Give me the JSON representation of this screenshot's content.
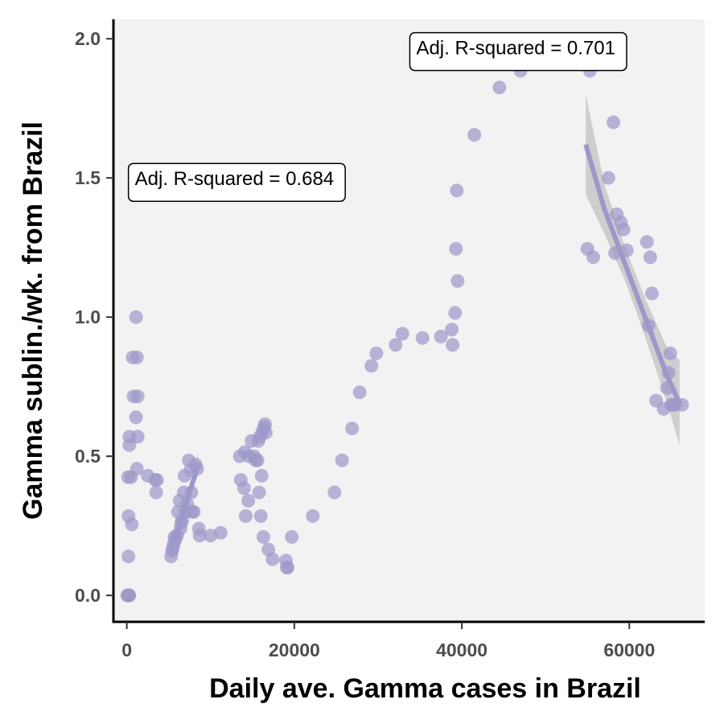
{
  "chart_data": {
    "type": "scatter",
    "title": "",
    "xlabel": "Daily ave. Gamma cases in Brazil",
    "ylabel": "Gamma sublin./wk. from Brazil",
    "xlim": [
      -1600,
      69000
    ],
    "ylim": [
      -0.095,
      2.07
    ],
    "x_ticks": [
      0,
      20000,
      40000,
      60000
    ],
    "x_tick_labels": [
      "0",
      "20000",
      "40000",
      "60000"
    ],
    "y_ticks": [
      0.0,
      0.5,
      1.0,
      1.5,
      2.0
    ],
    "y_tick_labels": [
      "0.0",
      "0.5",
      "1.0",
      "1.5",
      "2.0"
    ],
    "grid": false,
    "colors": {
      "points": "#9c98c9",
      "fit": "#9c98c9",
      "band": "#aaaaaa",
      "panel": "#f2f2f2"
    },
    "points": [
      [
        50,
        0.0
      ],
      [
        150,
        0.0
      ],
      [
        250,
        0.0
      ],
      [
        300,
        0.0
      ],
      [
        200,
        0.14
      ],
      [
        200,
        0.285
      ],
      [
        600,
        0.255
      ],
      [
        150,
        0.425
      ],
      [
        500,
        0.425
      ],
      [
        300,
        0.54
      ],
      [
        300,
        0.57
      ],
      [
        700,
        0.855
      ],
      [
        1200,
        0.855
      ],
      [
        800,
        0.715
      ],
      [
        1300,
        0.715
      ],
      [
        1100,
        0.64
      ],
      [
        1300,
        0.57
      ],
      [
        1200,
        0.455
      ],
      [
        1100,
        1.0
      ],
      [
        2500,
        0.43
      ],
      [
        3400,
        0.415
      ],
      [
        3600,
        0.415
      ],
      [
        3500,
        0.37
      ],
      [
        5300,
        0.14
      ],
      [
        5400,
        0.16
      ],
      [
        5500,
        0.17
      ],
      [
        5600,
        0.185
      ],
      [
        5700,
        0.21
      ],
      [
        5800,
        0.2
      ],
      [
        6000,
        0.215
      ],
      [
        6100,
        0.3
      ],
      [
        6300,
        0.34
      ],
      [
        6400,
        0.24
      ],
      [
        6500,
        0.26
      ],
      [
        6600,
        0.27
      ],
      [
        6800,
        0.37
      ],
      [
        6900,
        0.43
      ],
      [
        7000,
        0.3
      ],
      [
        7200,
        0.33
      ],
      [
        7400,
        0.485
      ],
      [
        7600,
        0.45
      ],
      [
        7700,
        0.37
      ],
      [
        7800,
        0.3
      ],
      [
        8000,
        0.3
      ],
      [
        8200,
        0.47
      ],
      [
        8400,
        0.455
      ],
      [
        8600,
        0.24
      ],
      [
        8700,
        0.215
      ],
      [
        10000,
        0.215
      ],
      [
        11200,
        0.225
      ],
      [
        13500,
        0.5
      ],
      [
        13600,
        0.415
      ],
      [
        14000,
        0.385
      ],
      [
        14200,
        0.285
      ],
      [
        14100,
        0.515
      ],
      [
        14500,
        0.34
      ],
      [
        14600,
        0.5
      ],
      [
        14900,
        0.555
      ],
      [
        15200,
        0.5
      ],
      [
        15400,
        0.485
      ],
      [
        15600,
        0.485
      ],
      [
        15700,
        0.555
      ],
      [
        15800,
        0.37
      ],
      [
        15900,
        0.57
      ],
      [
        16000,
        0.285
      ],
      [
        16100,
        0.43
      ],
      [
        16200,
        0.59
      ],
      [
        16300,
        0.21
      ],
      [
        16400,
        0.605
      ],
      [
        16500,
        0.615
      ],
      [
        16600,
        0.585
      ],
      [
        16900,
        0.165
      ],
      [
        17400,
        0.13
      ],
      [
        19000,
        0.125
      ],
      [
        19100,
        0.1
      ],
      [
        19200,
        0.1
      ],
      [
        19700,
        0.21
      ],
      [
        22200,
        0.285
      ],
      [
        24800,
        0.37
      ],
      [
        25700,
        0.485
      ],
      [
        26900,
        0.6
      ],
      [
        27800,
        0.73
      ],
      [
        29200,
        0.825
      ],
      [
        29800,
        0.87
      ],
      [
        32100,
        0.9
      ],
      [
        32900,
        0.94
      ],
      [
        35300,
        0.925
      ],
      [
        37500,
        0.93
      ],
      [
        38800,
        0.955
      ],
      [
        38900,
        0.9
      ],
      [
        39200,
        1.015
      ],
      [
        39300,
        1.245
      ],
      [
        39400,
        1.455
      ],
      [
        39500,
        1.13
      ],
      [
        41500,
        1.655
      ],
      [
        44500,
        1.825
      ],
      [
        47000,
        1.885
      ],
      [
        55300,
        1.885
      ],
      [
        55000,
        1.245
      ],
      [
        55700,
        1.215
      ],
      [
        57500,
        1.5
      ],
      [
        58100,
        1.7
      ],
      [
        58300,
        1.23
      ],
      [
        58500,
        1.37
      ],
      [
        59000,
        1.34
      ],
      [
        59300,
        1.315
      ],
      [
        59700,
        1.24
      ],
      [
        62100,
        1.27
      ],
      [
        62300,
        0.97
      ],
      [
        62500,
        1.215
      ],
      [
        62700,
        1.085
      ],
      [
        63200,
        0.7
      ],
      [
        64100,
        0.67
      ],
      [
        64500,
        0.745
      ],
      [
        64700,
        0.8
      ],
      [
        64900,
        0.87
      ],
      [
        65000,
        0.685
      ],
      [
        65200,
        0.685
      ],
      [
        65500,
        0.685
      ],
      [
        66300,
        0.685
      ]
    ],
    "fits": [
      {
        "x": [
          5700,
          6500,
          7200,
          7900,
          8500
        ],
        "y": [
          0.2,
          0.27,
          0.34,
          0.41,
          0.47
        ],
        "y_lower": [
          0.18,
          0.255,
          0.325,
          0.385,
          0.43
        ],
        "y_upper": [
          0.22,
          0.285,
          0.355,
          0.435,
          0.51
        ]
      },
      {
        "x": [
          54800,
          57000,
          59500,
          62000,
          64500,
          66000
        ],
        "y": [
          1.62,
          1.39,
          1.19,
          0.99,
          0.79,
          0.69
        ],
        "y_lower": [
          1.44,
          1.3,
          1.13,
          0.92,
          0.69,
          0.54
        ],
        "y_upper": [
          1.8,
          1.48,
          1.25,
          1.06,
          0.89,
          0.845
        ]
      }
    ],
    "annotations": [
      {
        "text": "Adj. R-squared = 0.684",
        "x": 0,
        "y": 1.5
      },
      {
        "text": "Adj. R-squared = 0.701",
        "x": 33600,
        "y": 1.97
      }
    ]
  }
}
